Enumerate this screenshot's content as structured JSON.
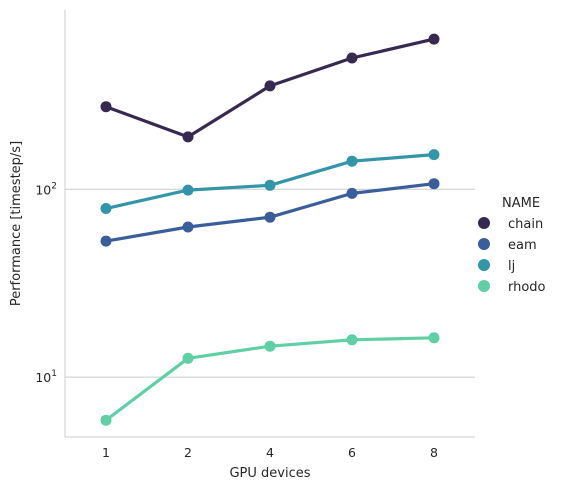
{
  "chart_data": {
    "type": "line",
    "title": "",
    "xlabel": "GPU devices",
    "ylabel": "Performance [timestep/s]",
    "yscale": "log",
    "ylim": [
      4.8,
      900
    ],
    "grid": "horizontal major lines",
    "categories": [
      "1",
      "2",
      "4",
      "6",
      "8"
    ],
    "ytick_values": [
      10,
      100
    ],
    "ytick_base": "10",
    "ytick_exponents": [
      "1",
      "2"
    ],
    "legend": {
      "title": "NAME",
      "position": "right"
    },
    "series": [
      {
        "name": "chain",
        "color": "#37294f",
        "values": [
          275,
          190,
          355,
          500,
          630
        ]
      },
      {
        "name": "eam",
        "color": "#3a5d9c",
        "values": [
          53,
          63,
          71,
          95,
          107
        ]
      },
      {
        "name": "lj",
        "color": "#3395a8",
        "values": [
          79,
          99,
          105,
          141,
          153
        ]
      },
      {
        "name": "rhodo",
        "color": "#5fd0a6",
        "values": [
          5.9,
          12.6,
          14.6,
          15.8,
          16.2
        ]
      }
    ]
  }
}
